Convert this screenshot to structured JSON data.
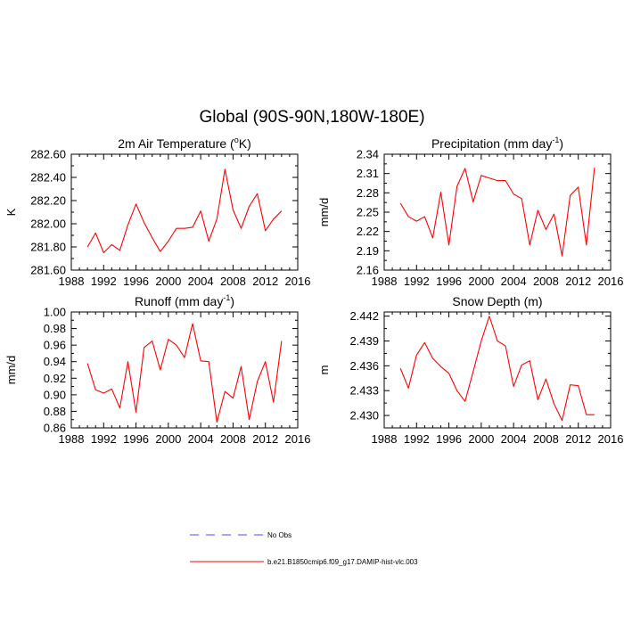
{
  "figure": {
    "title": "Global (90S-90N,180W-180E)"
  },
  "legend": {
    "items": [
      {
        "label": "No Obs",
        "color": "#4c4cff",
        "style": "dashed"
      },
      {
        "label": "b.e21.B1850cmip6.f09_g17.DAMIP-hist-vlc.003",
        "color": "#ff0000",
        "style": "solid"
      }
    ]
  },
  "chart_data": [
    {
      "type": "line",
      "title_main": "2m Air Temperature (",
      "title_sup": "o",
      "title_tail": "K)",
      "ylabel": "K",
      "xlim": [
        1988,
        2016
      ],
      "ylim": [
        281.6,
        282.6
      ],
      "xticks": [
        1988,
        1992,
        1996,
        2000,
        2004,
        2008,
        2012,
        2016
      ],
      "yticks": [
        281.6,
        281.8,
        282.0,
        282.2,
        282.4,
        282.6
      ],
      "ytick_labels": [
        "281.60",
        "281.80",
        "282.00",
        "282.20",
        "282.40",
        "282.60"
      ],
      "series": [
        {
          "name": "b.e21.B1850cmip6.f09_g17.DAMIP-hist-vlc.003",
          "color": "#ff0000",
          "x": [
            1990,
            1991,
            1992,
            1993,
            1994,
            1995,
            1996,
            1997,
            1998,
            1999,
            2000,
            2001,
            2002,
            2003,
            2004,
            2005,
            2006,
            2007,
            2008,
            2009,
            2010,
            2011,
            2012,
            2013,
            2014
          ],
          "y": [
            281.8,
            281.92,
            281.75,
            281.82,
            281.77,
            281.99,
            282.17,
            282.01,
            281.88,
            281.76,
            281.85,
            281.96,
            281.96,
            281.97,
            282.11,
            281.85,
            282.04,
            282.47,
            282.12,
            281.96,
            282.15,
            282.26,
            281.94,
            282.04,
            282.11
          ]
        }
      ]
    },
    {
      "type": "line",
      "title_main": "Precipitation (mm day",
      "title_sup": "-1",
      "title_tail": ")",
      "ylabel": "mm/d",
      "xlim": [
        1988,
        2016
      ],
      "ylim": [
        2.16,
        2.34
      ],
      "xticks": [
        1988,
        1992,
        1996,
        2000,
        2004,
        2008,
        2012,
        2016
      ],
      "yticks": [
        2.16,
        2.19,
        2.22,
        2.25,
        2.28,
        2.31,
        2.34
      ],
      "ytick_labels": [
        "2.16",
        "2.19",
        "2.22",
        "2.25",
        "2.28",
        "2.31",
        "2.34"
      ],
      "series": [
        {
          "name": "b.e21.B1850cmip6.f09_g17.DAMIP-hist-vlc.003",
          "color": "#ff0000",
          "x": [
            1990,
            1991,
            1992,
            1993,
            1994,
            1995,
            1996,
            1997,
            1998,
            1999,
            2000,
            2001,
            2002,
            2003,
            2004,
            2005,
            2006,
            2007,
            2008,
            2009,
            2010,
            2011,
            2012,
            2013,
            2014
          ],
          "y": [
            2.264,
            2.243,
            2.236,
            2.243,
            2.21,
            2.281,
            2.199,
            2.29,
            2.318,
            2.266,
            2.307,
            2.303,
            2.299,
            2.299,
            2.278,
            2.271,
            2.199,
            2.253,
            2.223,
            2.247,
            2.182,
            2.276,
            2.289,
            2.199,
            2.319
          ]
        }
      ]
    },
    {
      "type": "line",
      "title_main": "Runoff (mm day",
      "title_sup": "-1",
      "title_tail": ")",
      "ylabel": "mm/d",
      "xlim": [
        1988,
        2016
      ],
      "ylim": [
        0.86,
        1.0
      ],
      "xticks": [
        1988,
        1992,
        1996,
        2000,
        2004,
        2008,
        2012,
        2016
      ],
      "yticks": [
        0.86,
        0.88,
        0.9,
        0.92,
        0.94,
        0.96,
        0.98,
        1.0
      ],
      "ytick_labels": [
        "0.86",
        "0.88",
        "0.90",
        "0.92",
        "0.94",
        "0.96",
        "0.98",
        "1.00"
      ],
      "series": [
        {
          "name": "b.e21.B1850cmip6.f09_g17.DAMIP-hist-vlc.003",
          "color": "#ff0000",
          "x": [
            1990,
            1991,
            1992,
            1993,
            1994,
            1995,
            1996,
            1997,
            1998,
            1999,
            2000,
            2001,
            2002,
            2003,
            2004,
            2005,
            2006,
            2007,
            2008,
            2009,
            2010,
            2011,
            2012,
            2013,
            2014
          ],
          "y": [
            0.938,
            0.906,
            0.902,
            0.907,
            0.884,
            0.94,
            0.879,
            0.957,
            0.965,
            0.93,
            0.967,
            0.96,
            0.945,
            0.986,
            0.941,
            0.94,
            0.867,
            0.904,
            0.896,
            0.934,
            0.87,
            0.916,
            0.94,
            0.891,
            0.965
          ]
        }
      ]
    },
    {
      "type": "line",
      "title_main": "Snow Depth (m)",
      "title_sup": "",
      "title_tail": "",
      "ylabel": "m",
      "xlim": [
        1988,
        2016
      ],
      "ylim": [
        2.4285,
        2.4425
      ],
      "xticks": [
        1988,
        1992,
        1996,
        2000,
        2004,
        2008,
        2012,
        2016
      ],
      "yticks": [
        2.43,
        2.433,
        2.436,
        2.439,
        2.442
      ],
      "ytick_labels": [
        "2.430",
        "2.433",
        "2.436",
        "2.439",
        "2.442"
      ],
      "series": [
        {
          "name": "b.e21.B1850cmip6.f09_g17.DAMIP-hist-vlc.003",
          "color": "#ff0000",
          "x": [
            1990,
            1991,
            1992,
            1993,
            1994,
            1995,
            1996,
            1997,
            1998,
            1999,
            2000,
            2001,
            2002,
            2003,
            2004,
            2005,
            2006,
            2007,
            2008,
            2009,
            2010,
            2011,
            2012,
            2013,
            2014
          ],
          "y": [
            2.4357,
            2.4333,
            2.4373,
            2.4388,
            2.4369,
            2.4359,
            2.4351,
            2.433,
            2.4317,
            2.4353,
            2.439,
            2.442,
            2.439,
            2.4384,
            2.4335,
            2.4361,
            2.4366,
            2.4319,
            2.4344,
            2.4314,
            2.4294,
            2.4337,
            2.4336,
            2.4301,
            2.4301
          ]
        }
      ]
    }
  ]
}
